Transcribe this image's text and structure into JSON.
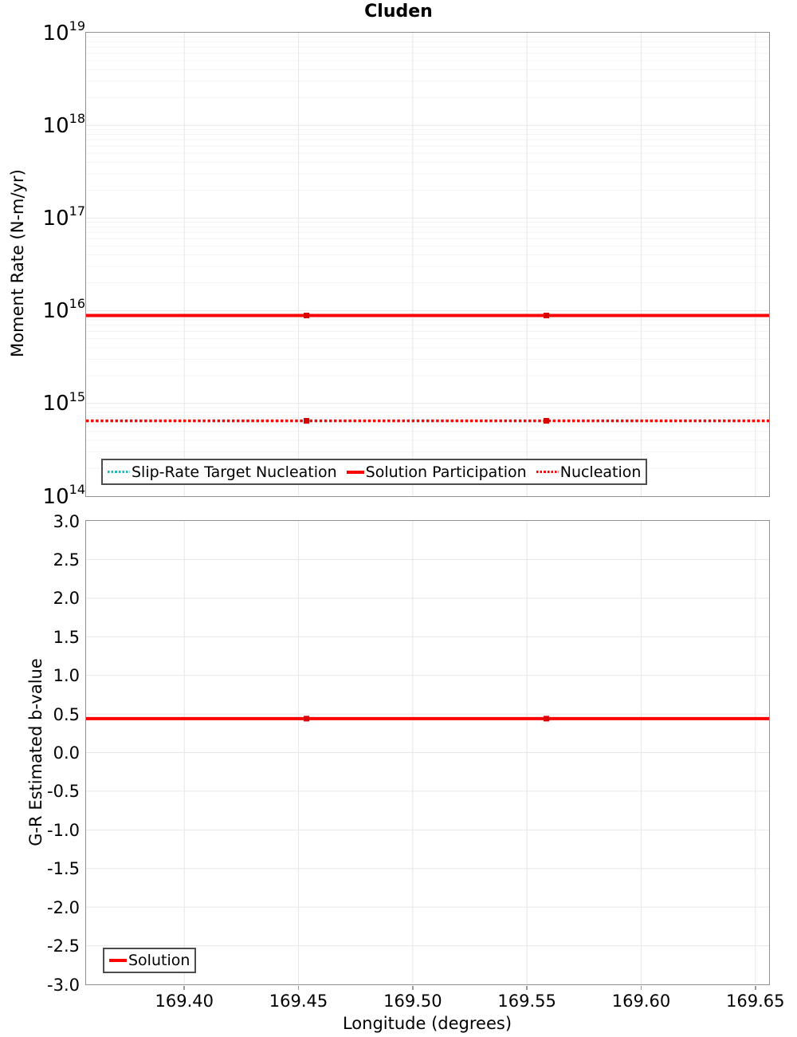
{
  "chart_data": [
    {
      "type": "line",
      "title": "Cluden",
      "ylabel": "Moment Rate (N-m/yr)",
      "xlabel": "",
      "yscale": "log",
      "ylim": [
        100000000000000.0,
        1e+19
      ],
      "ytick_exponents": [
        19,
        18,
        17,
        16,
        15,
        14
      ],
      "xlim": [
        169.357,
        169.656
      ],
      "xticks": [
        169.4,
        169.45,
        169.5,
        169.55,
        169.6,
        169.65
      ],
      "xtick_labels": [
        "169.40",
        "169.45",
        "169.50",
        "169.55",
        "169.60",
        "169.65"
      ],
      "x_points": [
        169.357,
        169.4535,
        169.5585,
        169.656
      ],
      "marker_points": [
        169.4535,
        169.5585
      ],
      "grid": true,
      "legend_position": "inside-bottom-left",
      "series": [
        {
          "name": "Slip-Rate Target Nucleation",
          "color": "#1cb9b9",
          "marker_color": "#17a3a3",
          "linestyle": "dotted",
          "value": 650000000000000.0
        },
        {
          "name": "Solution Participation",
          "color": "#ff0000",
          "marker_color": "#d90000",
          "linestyle": "solid",
          "value": 8900000000000000.0
        },
        {
          "name": "Nucleation",
          "color": "#ff0000",
          "marker_color": "#d90000",
          "linestyle": "dotted",
          "value": 650000000000000.0
        }
      ]
    },
    {
      "type": "line",
      "title": "",
      "ylabel": "G-R Estimated b-value",
      "xlabel": "Longitude (degrees)",
      "yscale": "linear",
      "ylim": [
        -3.0,
        3.0
      ],
      "ytick_step": 0.5,
      "ytick_labels": [
        "3.0",
        "2.5",
        "2.0",
        "1.5",
        "1.0",
        "0.5",
        "0.0",
        "-0.5",
        "-1.0",
        "-1.5",
        "-2.0",
        "-2.5",
        "-3.0"
      ],
      "ytick_values": [
        3.0,
        2.5,
        2.0,
        1.5,
        1.0,
        0.5,
        0.0,
        -0.5,
        -1.0,
        -1.5,
        -2.0,
        -2.5,
        -3.0
      ],
      "xlim": [
        169.357,
        169.656
      ],
      "xticks": [
        169.4,
        169.45,
        169.5,
        169.55,
        169.6,
        169.65
      ],
      "xtick_labels": [
        "169.40",
        "169.45",
        "169.50",
        "169.55",
        "169.60",
        "169.65"
      ],
      "x_points": [
        169.357,
        169.4535,
        169.5585,
        169.656
      ],
      "marker_points": [
        169.4535,
        169.5585
      ],
      "grid": true,
      "legend_position": "inside-bottom-left",
      "series": [
        {
          "name": "Solution",
          "color": "#ff0000",
          "marker_color": "#d90000",
          "linestyle": "solid",
          "value": 0.44
        }
      ]
    }
  ],
  "colors": {
    "plot_border": "#919191",
    "grid_major": "#e7e7e7",
    "grid_minor": "#f3f3f3",
    "tick_mark": "#999999",
    "legend_border": "#4d4d4d"
  }
}
